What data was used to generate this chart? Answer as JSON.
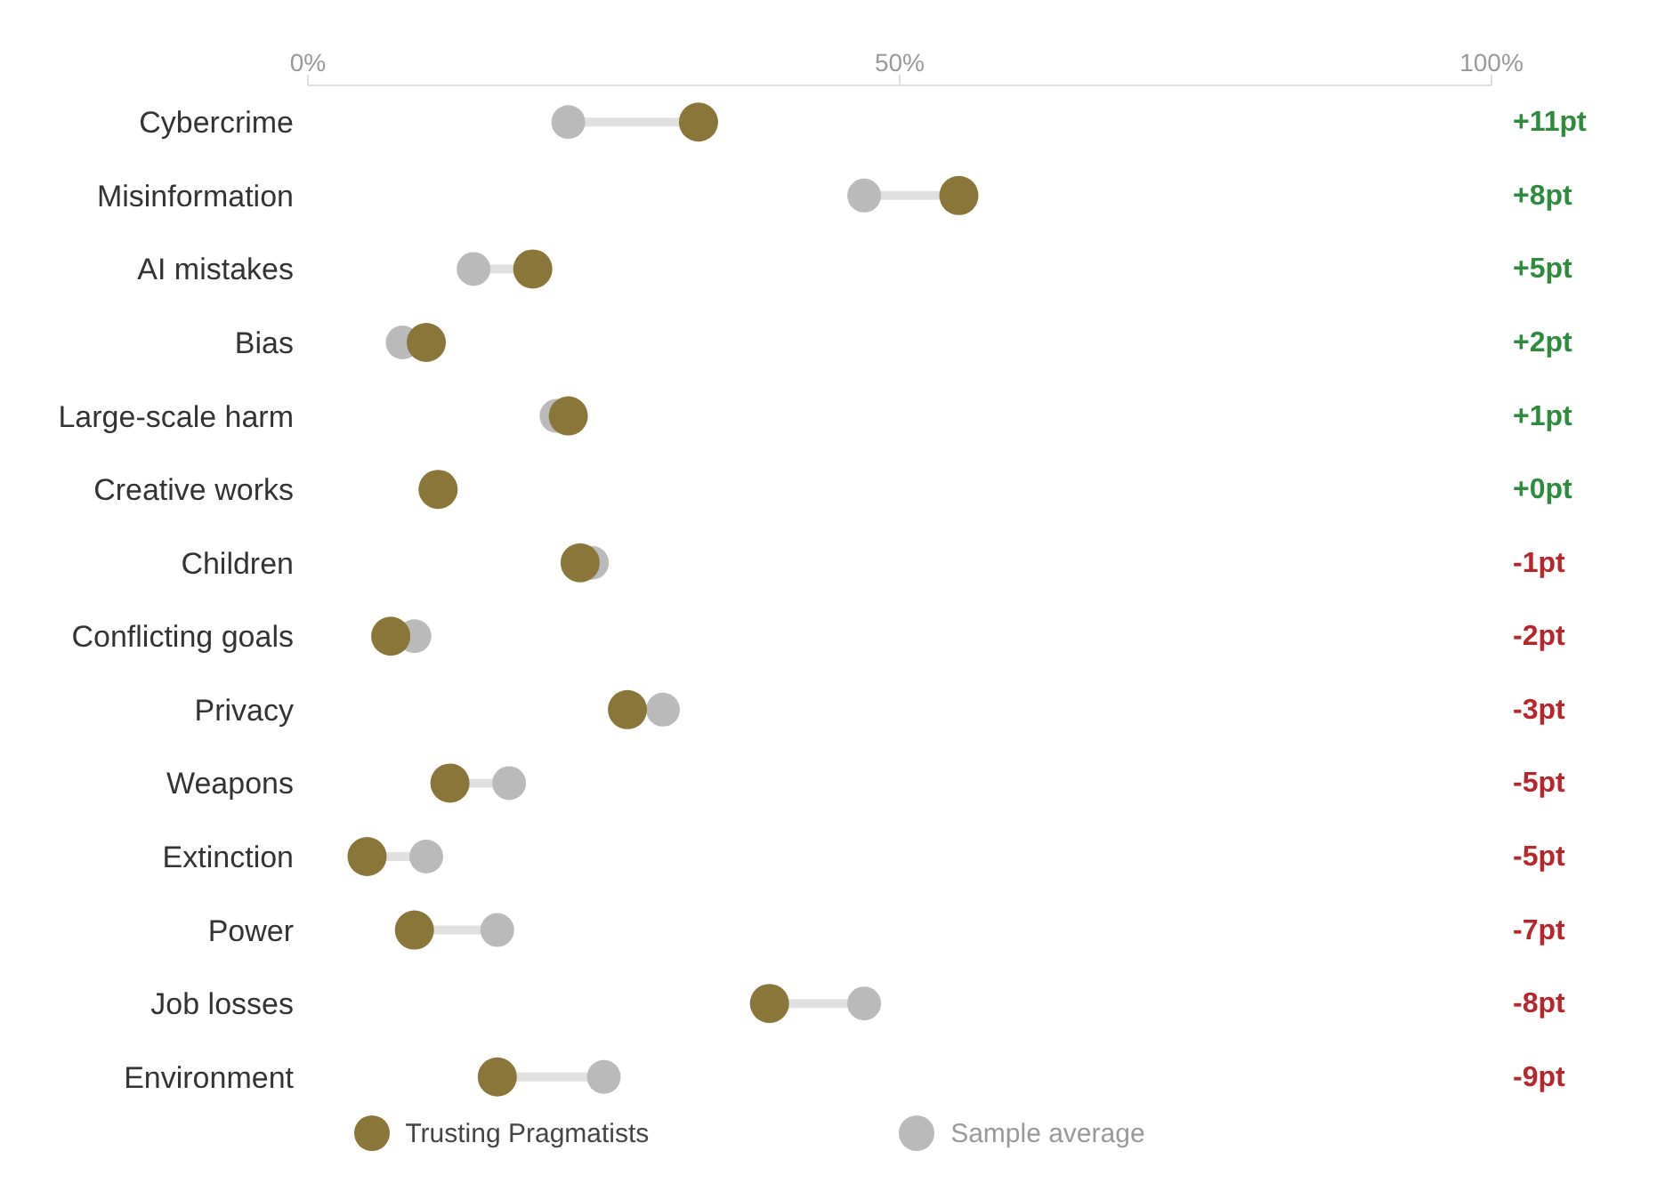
{
  "chart_data": {
    "type": "scatter",
    "orientation": "horizontal",
    "categories": [
      "Cybercrime",
      "Misinformation",
      "AI mistakes",
      "Bias",
      "Large-scale harm",
      "Creative works",
      "Children",
      "Conflicting goals",
      "Privacy",
      "Weapons",
      "Extinction",
      "Power",
      "Job losses",
      "Environment"
    ],
    "series": [
      {
        "name": "Trusting Pragmatists",
        "color": "#8b763a",
        "values": [
          33,
          55,
          19,
          10,
          22,
          11,
          23,
          7,
          27,
          12,
          5,
          9,
          39,
          16
        ]
      },
      {
        "name": "Sample average",
        "color": "#bababa",
        "values": [
          22,
          47,
          14,
          8,
          21,
          null,
          24,
          9,
          30,
          17,
          10,
          16,
          47,
          25
        ]
      }
    ],
    "annotations": [
      "+11pt",
      "+8pt",
      "+5pt",
      "+2pt",
      "+1pt",
      "+0pt",
      "-1pt",
      "-2pt",
      "-3pt",
      "-5pt",
      "-5pt",
      "-7pt",
      "-8pt",
      "-9pt"
    ],
    "xlim": [
      0,
      100
    ],
    "xticks": [
      {
        "value": 0,
        "label": "0%"
      },
      {
        "value": 50,
        "label": "50%"
      },
      {
        "value": 100,
        "label": "100%"
      }
    ],
    "marker": "circle",
    "grid": false,
    "legend": "bottom"
  }
}
